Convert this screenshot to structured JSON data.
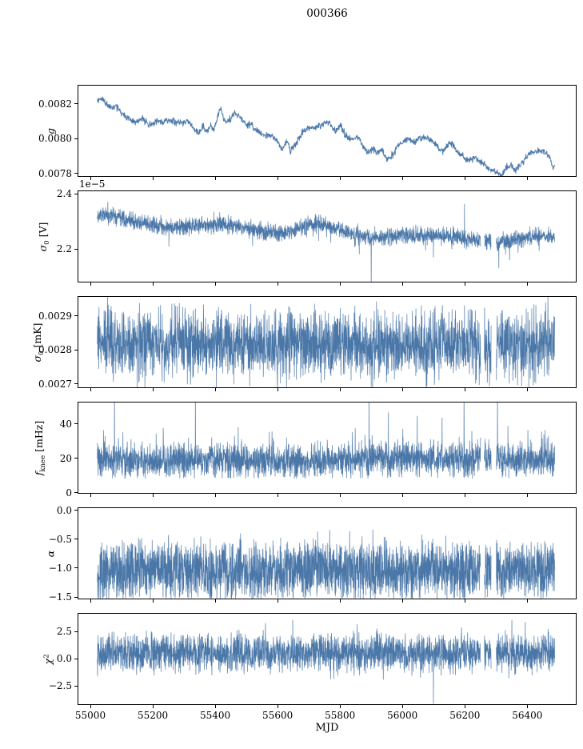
{
  "figure": {
    "title": "000366",
    "xlabel": "MJD",
    "line_color": "#4a77a8",
    "background": "#ffffff",
    "axes": {
      "xlim": [
        54959,
        56558
      ],
      "x_data_range": [
        55020,
        56490
      ],
      "xticks": {
        "values": [
          55000,
          55200,
          55400,
          55600,
          55800,
          56000,
          56200,
          56400
        ],
        "labels": [
          "55000",
          "55200",
          "55400",
          "55600",
          "55800",
          "56000",
          "56200",
          "56400"
        ]
      }
    }
  },
  "chart_data": [
    {
      "id": "g",
      "type": "line",
      "ylabel_text": "g",
      "ylabel_parts": [
        {
          "text": "g",
          "style": "italic"
        }
      ],
      "ylim": [
        0.00778,
        0.00831
      ],
      "yticks": {
        "values": [
          0.0082,
          0.008,
          0.0078
        ],
        "labels": [
          "0.0082",
          "0.0080",
          "0.0078"
        ]
      },
      "offset_text": null,
      "samples": 1400,
      "noise": {
        "seed": 11,
        "spread_gauss": 1e-05,
        "walk": 5e-06
      },
      "events": [],
      "gaps": [],
      "trend": [
        [
          55020,
          0.00822
        ],
        [
          55035,
          0.00824
        ],
        [
          55050,
          0.00821
        ],
        [
          55065,
          0.00819
        ],
        [
          55080,
          0.0082
        ],
        [
          55095,
          0.00817
        ],
        [
          55110,
          0.00815
        ],
        [
          55125,
          0.00813
        ],
        [
          55140,
          0.00812
        ],
        [
          55160,
          0.00813
        ],
        [
          55175,
          0.00811
        ],
        [
          55190,
          0.0081
        ],
        [
          55210,
          0.00811
        ],
        [
          55230,
          0.0081
        ],
        [
          55250,
          0.00811
        ],
        [
          55270,
          0.0081
        ],
        [
          55290,
          0.0081
        ],
        [
          55310,
          0.00811
        ],
        [
          55330,
          0.00805
        ],
        [
          55345,
          0.00803
        ],
        [
          55360,
          0.00807
        ],
        [
          55370,
          0.00804
        ],
        [
          55385,
          0.00807
        ],
        [
          55395,
          0.00805
        ],
        [
          55405,
          0.00812
        ],
        [
          55415,
          0.00818
        ],
        [
          55425,
          0.00813
        ],
        [
          55435,
          0.0081
        ],
        [
          55450,
          0.00812
        ],
        [
          55465,
          0.00815
        ],
        [
          55480,
          0.00812
        ],
        [
          55495,
          0.00809
        ],
        [
          55510,
          0.00808
        ],
        [
          55525,
          0.00806
        ],
        [
          55540,
          0.00804
        ],
        [
          55560,
          0.00801
        ],
        [
          55575,
          0.00802
        ],
        [
          55590,
          0.00801
        ],
        [
          55605,
          0.00798
        ],
        [
          55615,
          0.00795
        ],
        [
          55630,
          0.008
        ],
        [
          55640,
          0.00794
        ],
        [
          55650,
          0.00796
        ],
        [
          55665,
          0.00799
        ],
        [
          55680,
          0.00804
        ],
        [
          55695,
          0.00806
        ],
        [
          55710,
          0.00806
        ],
        [
          55725,
          0.00807
        ],
        [
          55740,
          0.00807
        ],
        [
          55755,
          0.00809
        ],
        [
          55770,
          0.00808
        ],
        [
          55785,
          0.00805
        ],
        [
          55800,
          0.00808
        ],
        [
          55815,
          0.00802
        ],
        [
          55830,
          0.00799
        ],
        [
          55845,
          0.00799
        ],
        [
          55860,
          0.008
        ],
        [
          55875,
          0.00795
        ],
        [
          55890,
          0.00793
        ],
        [
          55905,
          0.00794
        ],
        [
          55920,
          0.00791
        ],
        [
          55935,
          0.00794
        ],
        [
          55950,
          0.00788
        ],
        [
          55965,
          0.0079
        ],
        [
          55980,
          0.00793
        ],
        [
          55995,
          0.00797
        ],
        [
          56010,
          0.00799
        ],
        [
          56025,
          0.00799
        ],
        [
          56040,
          0.00797
        ],
        [
          56055,
          0.008
        ],
        [
          56070,
          0.00801
        ],
        [
          56085,
          0.008
        ],
        [
          56100,
          0.00798
        ],
        [
          56115,
          0.00795
        ],
        [
          56130,
          0.00793
        ],
        [
          56145,
          0.00795
        ],
        [
          56160,
          0.00796
        ],
        [
          56175,
          0.00792
        ],
        [
          56190,
          0.00789
        ],
        [
          56205,
          0.00787
        ],
        [
          56220,
          0.00786
        ],
        [
          56235,
          0.00788
        ],
        [
          56250,
          0.00785
        ],
        [
          56265,
          0.00784
        ],
        [
          56280,
          0.00782
        ],
        [
          56295,
          0.0078
        ],
        [
          56310,
          0.00779
        ],
        [
          56320,
          0.00778
        ],
        [
          56335,
          0.00783
        ],
        [
          56350,
          0.00785
        ],
        [
          56365,
          0.00782
        ],
        [
          56380,
          0.00785
        ],
        [
          56395,
          0.00789
        ],
        [
          56410,
          0.00791
        ],
        [
          56425,
          0.00793
        ],
        [
          56440,
          0.00793
        ],
        [
          56455,
          0.00792
        ],
        [
          56470,
          0.0079
        ],
        [
          56485,
          0.00783
        ]
      ]
    },
    {
      "id": "sigma0-V",
      "type": "noisy",
      "ylabel_text": "sigma_0 [V]",
      "ylabel_parts": [
        {
          "text": "σ",
          "style": "italic"
        },
        {
          "text": "0",
          "style": "sub"
        },
        {
          "text": " [V]",
          "style": "normal"
        }
      ],
      "ylim": [
        2.08,
        2.412
      ],
      "yticks": {
        "values": [
          2.4,
          2.2
        ],
        "labels": [
          "2.4",
          "2.2"
        ]
      },
      "offset_text": "1e−5",
      "samples": 2800,
      "noise": {
        "seed": 22,
        "spread_gauss": 0.015,
        "spread_uniform": 0.006,
        "down_spike_prob": 0.02,
        "down_spike_amp": 0.05
      },
      "events": [
        [
          55250,
          2.21
        ],
        [
          55900,
          2.05
        ],
        [
          56100,
          2.17
        ],
        [
          56200,
          2.365
        ],
        [
          56310,
          2.13
        ],
        [
          56345,
          2.16
        ]
      ],
      "gaps": [
        [
          56252,
          56264
        ],
        [
          56286,
          56302
        ]
      ],
      "trend": [
        [
          55020,
          2.33
        ],
        [
          55050,
          2.325
        ],
        [
          55080,
          2.318
        ],
        [
          55110,
          2.31
        ],
        [
          55140,
          2.3
        ],
        [
          55170,
          2.295
        ],
        [
          55200,
          2.288
        ],
        [
          55230,
          2.282
        ],
        [
          55260,
          2.28
        ],
        [
          55290,
          2.284
        ],
        [
          55320,
          2.286
        ],
        [
          55350,
          2.288
        ],
        [
          55380,
          2.288
        ],
        [
          55410,
          2.292
        ],
        [
          55440,
          2.288
        ],
        [
          55470,
          2.284
        ],
        [
          55500,
          2.277
        ],
        [
          55530,
          2.27
        ],
        [
          55560,
          2.265
        ],
        [
          55590,
          2.262
        ],
        [
          55620,
          2.262
        ],
        [
          55650,
          2.272
        ],
        [
          55680,
          2.282
        ],
        [
          55710,
          2.288
        ],
        [
          55740,
          2.29
        ],
        [
          55770,
          2.282
        ],
        [
          55800,
          2.272
        ],
        [
          55830,
          2.258
        ],
        [
          55860,
          2.248
        ],
        [
          55890,
          2.238
        ],
        [
          55920,
          2.238
        ],
        [
          55950,
          2.242
        ],
        [
          55980,
          2.248
        ],
        [
          56010,
          2.25
        ],
        [
          56040,
          2.25
        ],
        [
          56070,
          2.252
        ],
        [
          56100,
          2.25
        ],
        [
          56130,
          2.248
        ],
        [
          56160,
          2.246
        ],
        [
          56190,
          2.242
        ],
        [
          56220,
          2.238
        ],
        [
          56250,
          2.232
        ],
        [
          56280,
          2.228
        ],
        [
          56310,
          2.226
        ],
        [
          56340,
          2.23
        ],
        [
          56370,
          2.236
        ],
        [
          56400,
          2.242
        ],
        [
          56430,
          2.246
        ],
        [
          56460,
          2.246
        ],
        [
          56490,
          2.244
        ]
      ]
    },
    {
      "id": "sigma0-mK",
      "type": "noisy",
      "ylabel_text": "sigma_0 [mK]",
      "ylabel_parts": [
        {
          "text": "σ",
          "style": "italic"
        },
        {
          "text": "0",
          "style": "sub"
        },
        {
          "text": " [mK]",
          "style": "normal"
        }
      ],
      "ylim": [
        0.002688,
        0.002958
      ],
      "yticks": {
        "values": [
          0.0029,
          0.0028,
          0.0027
        ],
        "labels": [
          "0.0029",
          "0.0028",
          "0.0027"
        ]
      },
      "offset_text": null,
      "samples": 2800,
      "noise": {
        "seed": 33,
        "spread_gauss": 5e-05,
        "spread_uniform": 1e-05,
        "down_spike_prob": 0.03,
        "down_spike_amp": 6e-05
      },
      "events": [
        [
          55235,
          0.002752
        ],
        [
          55320,
          0.002756
        ],
        [
          55900,
          0.00269
        ],
        [
          56100,
          0.00275
        ],
        [
          56200,
          0.002932
        ],
        [
          56335,
          0.002748
        ]
      ],
      "gaps": [
        [
          56252,
          56264
        ],
        [
          56286,
          56302
        ]
      ],
      "trend": [
        [
          55020,
          0.002824
        ],
        [
          55100,
          0.002822
        ],
        [
          55200,
          0.00282
        ],
        [
          55300,
          0.002821
        ],
        [
          55400,
          0.002817
        ],
        [
          55460,
          0.002811
        ],
        [
          55520,
          0.002809
        ],
        [
          55580,
          0.002813
        ],
        [
          55640,
          0.002817
        ],
        [
          55700,
          0.00282
        ],
        [
          55760,
          0.00282
        ],
        [
          55820,
          0.002817
        ],
        [
          55880,
          0.002813
        ],
        [
          55940,
          0.002815
        ],
        [
          56000,
          0.002817
        ],
        [
          56060,
          0.002814
        ],
        [
          56120,
          0.002817
        ],
        [
          56180,
          0.002823
        ],
        [
          56230,
          0.002818
        ],
        [
          56270,
          0.002806
        ],
        [
          56310,
          0.002816
        ],
        [
          56360,
          0.002821
        ],
        [
          56410,
          0.002824
        ],
        [
          56460,
          0.002821
        ],
        [
          56490,
          0.00282
        ]
      ]
    },
    {
      "id": "fknee",
      "type": "noisy",
      "ylabel_text": "f_knee [mHz]",
      "ylabel_parts": [
        {
          "text": "f",
          "style": "italic"
        },
        {
          "text": "knee",
          "style": "sub"
        },
        {
          "text": " [mHz]",
          "style": "normal"
        }
      ],
      "ylim": [
        -0.5,
        53
      ],
      "yticks": {
        "values": [
          40,
          20,
          0
        ],
        "labels": [
          "40",
          "20",
          "0"
        ]
      },
      "offset_text": null,
      "samples": 2800,
      "noise": {
        "seed": 44,
        "spread_gauss": 4,
        "spread_uniform": 5.5,
        "up_spike_prob": 0.05,
        "up_spike_amp": 11,
        "floor": 11,
        "floor_slack": 3
      },
      "events": [
        [
          55075,
          60
        ],
        [
          55335,
          60
        ],
        [
          55893,
          60
        ],
        [
          55955,
          47
        ],
        [
          56048,
          45
        ],
        [
          56128,
          44
        ],
        [
          56198,
          60
        ],
        [
          56306,
          60
        ],
        [
          56455,
          34
        ]
      ],
      "gaps": [
        [
          56252,
          56264
        ],
        [
          56286,
          56302
        ]
      ],
      "trend": [
        [
          55020,
          19
        ],
        [
          55400,
          18.5
        ],
        [
          55700,
          18.5
        ],
        [
          55900,
          19
        ],
        [
          56000,
          20
        ],
        [
          56200,
          19
        ],
        [
          56480,
          19.5
        ]
      ]
    },
    {
      "id": "alpha",
      "type": "noisy",
      "ylabel_text": "alpha",
      "ylabel_parts": [
        {
          "text": "α",
          "style": "italic"
        }
      ],
      "ylim": [
        -1.54,
        0.05
      ],
      "yticks": {
        "values": [
          0.0,
          -0.5,
          -1.0,
          -1.5
        ],
        "labels": [
          "0.0",
          "−0.5",
          "−1.0",
          "−1.5"
        ]
      },
      "offset_text": null,
      "samples": 2800,
      "noise": {
        "seed": 55,
        "spread_gauss": 0.12,
        "spread_uniform": 0.4,
        "up_spike_prob": 0.012,
        "up_spike_amp": 0.28,
        "floor": -1.48,
        "floor_slack": 0.07
      },
      "events": [
        [
          55352,
          -0.45
        ],
        [
          55905,
          -0.33
        ],
        [
          56062,
          -0.42
        ]
      ],
      "gaps": [
        [
          56252,
          56264
        ],
        [
          56286,
          56302
        ]
      ],
      "trend": [
        [
          55020,
          -1.05
        ],
        [
          56480,
          -1.05
        ]
      ]
    },
    {
      "id": "chi2",
      "type": "noisy",
      "ylabel_text": "chi^2",
      "ylabel_parts": [
        {
          "text": "χ",
          "style": "italic"
        },
        {
          "text": "2",
          "style": "sup"
        }
      ],
      "ylim": [
        -4.26,
        4.19
      ],
      "yticks": {
        "values": [
          2.5,
          0.0,
          -2.5
        ],
        "labels": [
          "2.5",
          "0.0",
          "−2.5"
        ]
      },
      "offset_text": null,
      "samples": 2800,
      "noise": {
        "seed": 66,
        "spread_gauss": 0.55,
        "spread_uniform": 1.15,
        "up_spike_prob": 0.012,
        "up_spike_amp": 1.0,
        "down_spike_prob": 0.012,
        "down_spike_amp": 1.2
      },
      "events": [
        [
          55560,
          3.3
        ],
        [
          55648,
          3.6
        ],
        [
          55855,
          3.2
        ],
        [
          56100,
          -4.2
        ],
        [
          56352,
          3.6
        ],
        [
          56395,
          3.4
        ]
      ],
      "gaps": [
        [
          56252,
          56264
        ],
        [
          56286,
          56302
        ]
      ],
      "trend": [
        [
          55020,
          0.55
        ],
        [
          56480,
          0.55
        ]
      ]
    }
  ]
}
